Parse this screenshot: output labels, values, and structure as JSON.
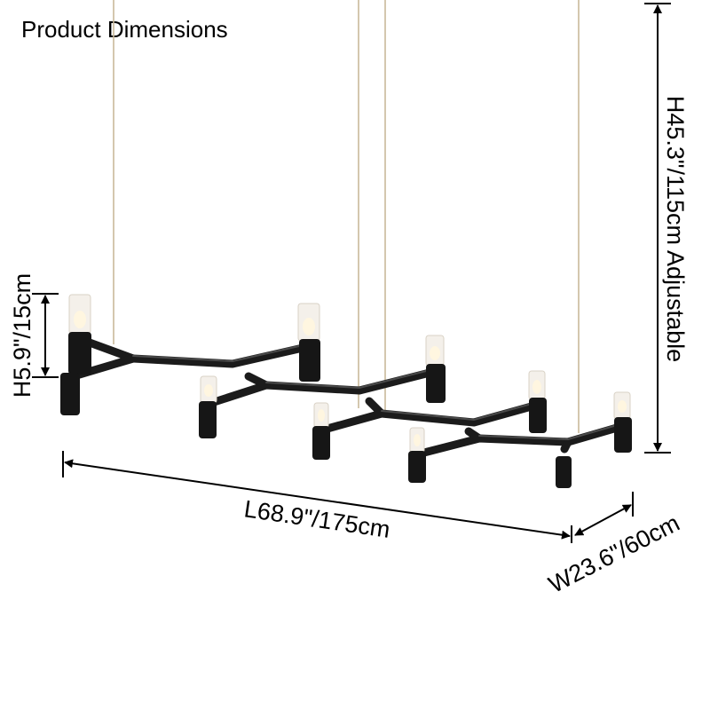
{
  "title": "Product Dimensions",
  "dimensions": {
    "height_total": "H45.3\"/115cm Adjustable",
    "height_fixture": "H5.9\"/15cm",
    "length": "L68.9\"/175cm",
    "width": "W23.6\"/60cm"
  },
  "colors": {
    "fixture": "#1b1b1b",
    "cable": "#c9b99a",
    "shade": "#f4f0ea"
  }
}
